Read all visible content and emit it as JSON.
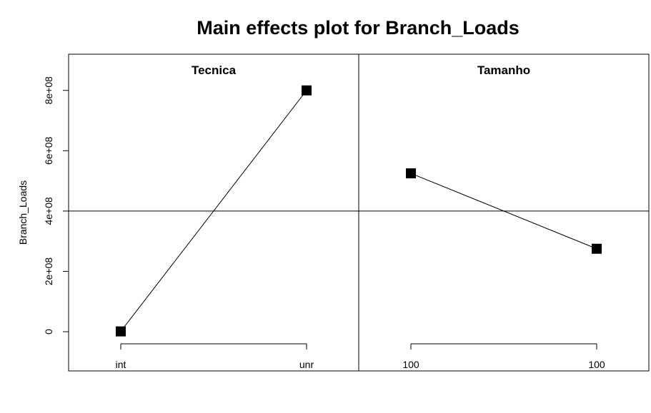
{
  "chart_data": {
    "type": "line",
    "title": "Main effects plot for Branch_Loads",
    "ylabel": "Branch_Loads",
    "ylim": [
      -130000000,
      920000000
    ],
    "yticks": [
      0,
      200000000,
      400000000,
      600000000,
      800000000
    ],
    "ytick_labels": [
      "0",
      "2e+08",
      "4e+08",
      "6e+08",
      "8e+08"
    ],
    "grand_mean": 400000000,
    "panels": [
      {
        "name": "Tecnica",
        "categories": [
          "int",
          "unr"
        ],
        "values": [
          1000000,
          800000000
        ]
      },
      {
        "name": "Tamanho",
        "categories": [
          "100",
          "100"
        ],
        "values": [
          525000000,
          275000000
        ]
      }
    ]
  }
}
